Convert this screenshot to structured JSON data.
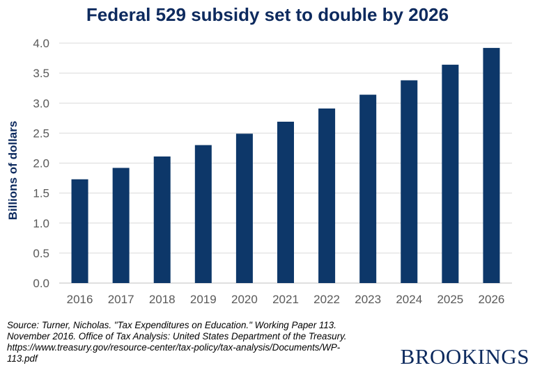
{
  "chart_data": {
    "type": "bar",
    "title": "Federal 529 subsidy set to double by 2026",
    "xlabel": "",
    "ylabel": "Billions of dollars",
    "categories": [
      "2016",
      "2017",
      "2018",
      "2019",
      "2020",
      "2021",
      "2022",
      "2023",
      "2024",
      "2025",
      "2026"
    ],
    "values": [
      1.73,
      1.92,
      2.11,
      2.3,
      2.49,
      2.69,
      2.91,
      3.14,
      3.38,
      3.64,
      3.92
    ],
    "ylim": [
      0,
      4.0
    ],
    "yticks": [
      "0.0",
      "0.5",
      "1.0",
      "1.5",
      "2.0",
      "2.5",
      "3.0",
      "3.5",
      "4.0"
    ],
    "grid": true,
    "bar_color": "#0d3769"
  },
  "source_lines": [
    "Source: Turner, Nicholas. \"Tax Expenditures on Education.\"  Working Paper 113.",
    "November 2016. Office of Tax Analysis: United States Department of the Treasury.",
    "https://www.treasury.gov/resource-center/tax-policy/tax-analysis/Documents/WP-",
    "113.pdf"
  ],
  "logo_text": "BROOKINGS",
  "colors": {
    "title": "#0d2a5e",
    "bar": "#0d3769",
    "grid": "#d9d9d9",
    "axis_text": "#595959"
  }
}
